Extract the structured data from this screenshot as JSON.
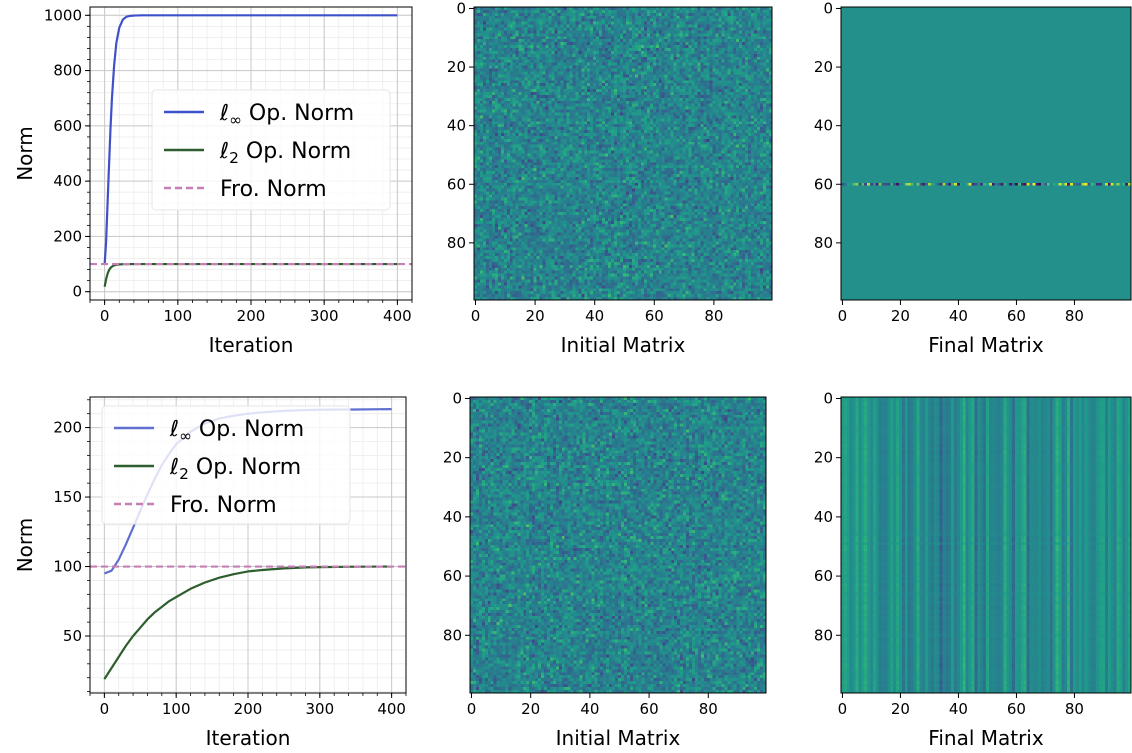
{
  "chart_data": [
    {
      "id": "line-top",
      "type": "line",
      "title": "",
      "xlabel": "Iteration",
      "ylabel": "Norm",
      "xlim": [
        -20,
        420
      ],
      "ylim": [
        -30,
        1030
      ],
      "xticks": [
        0,
        100,
        200,
        300,
        400
      ],
      "yticks": [
        0,
        200,
        400,
        600,
        800,
        1000
      ],
      "grid": true,
      "legend_position": "center-right",
      "series": [
        {
          "name": "ℓ∞ Op. Norm",
          "color": "#3f51c8",
          "style": "solid",
          "x": [
            0,
            2,
            5,
            8,
            10,
            13,
            16,
            20,
            25,
            30,
            35,
            40,
            50,
            70,
            100,
            150,
            200,
            250,
            300,
            350,
            400
          ],
          "y": [
            100,
            180,
            390,
            590,
            700,
            820,
            900,
            955,
            985,
            995,
            998,
            999,
            1000,
            1000,
            1000,
            1000,
            1000,
            1000,
            1000,
            1000,
            1000
          ]
        },
        {
          "name": "ℓ2 Op. Norm",
          "color": "#2e5e2e",
          "style": "solid",
          "x": [
            0,
            2,
            4,
            6,
            8,
            10,
            13,
            16,
            20,
            25,
            30,
            40,
            60,
            100,
            200,
            300,
            400
          ],
          "y": [
            18,
            45,
            65,
            78,
            86,
            91,
            95,
            97.5,
            98.8,
            99.5,
            99.8,
            100,
            100,
            100,
            100,
            100,
            100
          ]
        },
        {
          "name": "Fro. Norm",
          "color": "#c67fb4",
          "style": "dashed",
          "x": [
            -20,
            420
          ],
          "y": [
            100,
            100
          ]
        }
      ]
    },
    {
      "id": "heat-top-initial",
      "type": "heatmap",
      "xlabel": "Initial Matrix",
      "size": [
        100,
        100
      ],
      "xticks": [
        0,
        20,
        40,
        60,
        80
      ],
      "yticks": [
        0,
        20,
        40,
        60,
        80
      ],
      "colormap": "viridis",
      "pattern": "random-noise"
    },
    {
      "id": "heat-top-final",
      "type": "heatmap",
      "xlabel": "Final Matrix",
      "size": [
        100,
        100
      ],
      "xticks": [
        0,
        20,
        40,
        60,
        80
      ],
      "yticks": [
        0,
        20,
        40,
        60,
        80
      ],
      "colormap": "viridis",
      "pattern": "uniform background with a single varying row at index 60"
    },
    {
      "id": "line-bottom",
      "type": "line",
      "title": "",
      "xlabel": "Iteration",
      "ylabel": "Norm",
      "xlim": [
        -20,
        420
      ],
      "ylim": [
        9,
        222
      ],
      "xticks": [
        0,
        100,
        200,
        300,
        400
      ],
      "yticks": [
        50,
        100,
        150,
        200
      ],
      "grid": true,
      "legend_position": "upper-left",
      "series": [
        {
          "name": "ℓ∞ Op. Norm",
          "color": "#5f70d0",
          "style": "solid",
          "x": [
            0,
            10,
            20,
            30,
            40,
            50,
            60,
            70,
            80,
            90,
            100,
            120,
            140,
            160,
            180,
            200,
            220,
            250,
            280,
            300,
            350,
            400
          ],
          "y": [
            95,
            97,
            105,
            116,
            128,
            140,
            152,
            163,
            173,
            181,
            188,
            197,
            203,
            206.5,
            208.5,
            210,
            211,
            212,
            212.6,
            212.8,
            213,
            213.3
          ]
        },
        {
          "name": "ℓ2 Op. Norm",
          "color": "#2e5e2e",
          "style": "solid",
          "x": [
            0,
            10,
            20,
            30,
            40,
            50,
            60,
            70,
            80,
            90,
            100,
            120,
            140,
            160,
            180,
            200,
            220,
            250,
            280,
            300,
            350,
            400
          ],
          "y": [
            19,
            27,
            35,
            43,
            50,
            56,
            62,
            67,
            71,
            75,
            78,
            84,
            88.5,
            92,
            94.5,
            96.5,
            97.5,
            98.7,
            99.4,
            99.6,
            99.9,
            100
          ]
        },
        {
          "name": "Fro. Norm",
          "color": "#c67fb4",
          "style": "dashed",
          "x": [
            -20,
            420
          ],
          "y": [
            100,
            100
          ]
        }
      ]
    },
    {
      "id": "heat-bottom-initial",
      "type": "heatmap",
      "xlabel": "Initial Matrix",
      "size": [
        100,
        100
      ],
      "xticks": [
        0,
        20,
        40,
        60,
        80
      ],
      "yticks": [
        0,
        20,
        40,
        60,
        80
      ],
      "colormap": "viridis",
      "pattern": "random-noise"
    },
    {
      "id": "heat-bottom-final",
      "type": "heatmap",
      "xlabel": "Final Matrix",
      "size": [
        100,
        100
      ],
      "xticks": [
        0,
        20,
        40,
        60,
        80
      ],
      "yticks": [
        0,
        20,
        40,
        60,
        80
      ],
      "colormap": "viridis",
      "pattern": "low-rank stripes (mostly vertical bands with faint horizontal bands)"
    }
  ]
}
